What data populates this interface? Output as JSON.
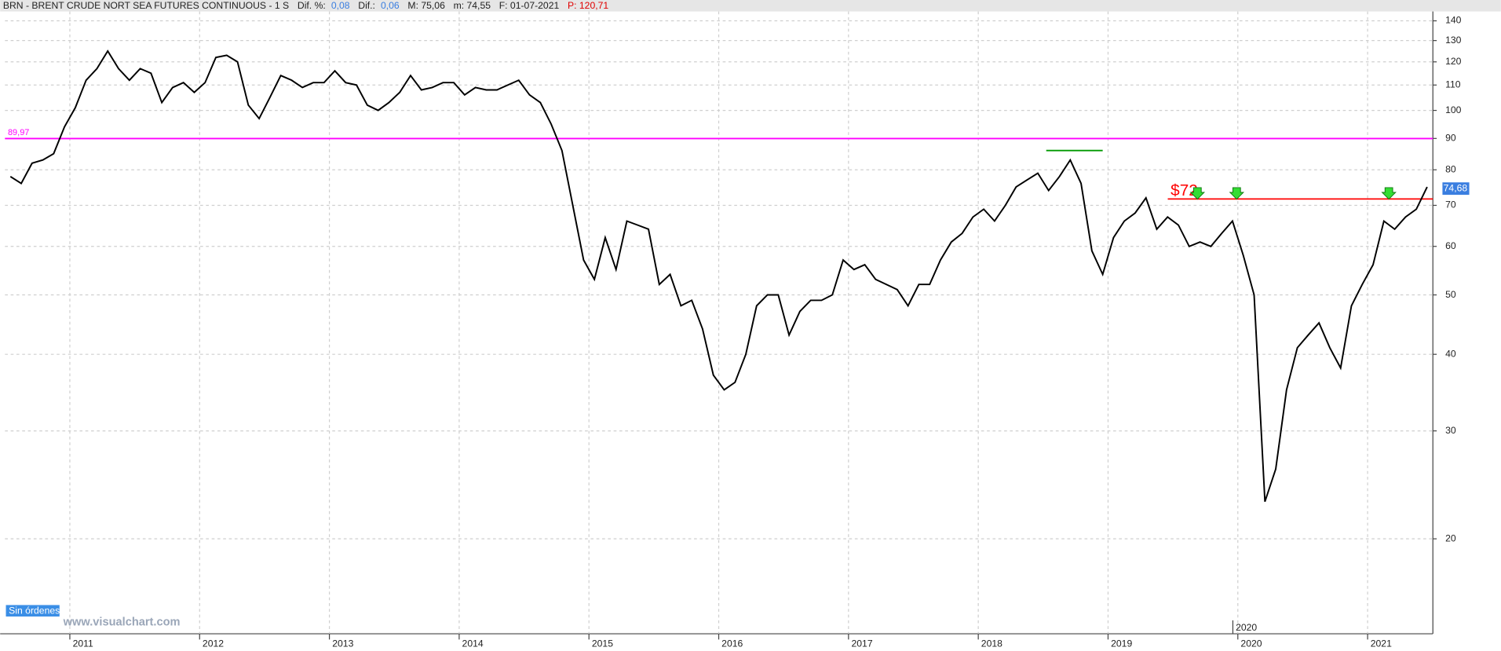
{
  "header": {
    "symbol": "BRN - BRENT CRUDE NORT SEA FUTURES CONTINUOUS -  1 S",
    "dif_pct_label": "Dif. %:",
    "dif_pct": "0,08",
    "dif_label": "Dif.:",
    "dif": "0,06",
    "max_label": "M: 75,06",
    "min_label": "m: 74,55",
    "date_label": "F: 01-07-2021",
    "p_label": "P: 120,71"
  },
  "footer": {
    "orders": "Sin órdenes",
    "site": "www.visualchart.com",
    "marker": "2020"
  },
  "chart_data": {
    "type": "line",
    "log_scale": true,
    "grid": true,
    "categories": [
      null,
      null,
      null,
      null,
      null,
      null,
      "2011",
      null,
      null,
      null,
      null,
      null,
      null,
      null,
      null,
      null,
      null,
      null,
      "2012",
      null,
      null,
      null,
      null,
      null,
      null,
      null,
      null,
      null,
      null,
      null,
      "2013",
      null,
      null,
      null,
      null,
      null,
      null,
      null,
      null,
      null,
      null,
      null,
      "2014",
      null,
      null,
      null,
      null,
      null,
      null,
      null,
      null,
      null,
      null,
      null,
      "2015",
      null,
      null,
      null,
      null,
      null,
      null,
      null,
      null,
      null,
      null,
      null,
      "2016",
      null,
      null,
      null,
      null,
      null,
      null,
      null,
      null,
      null,
      null,
      null,
      "2017",
      null,
      null,
      null,
      null,
      null,
      null,
      null,
      null,
      null,
      null,
      null,
      "2018",
      null,
      null,
      null,
      null,
      null,
      null,
      null,
      null,
      null,
      null,
      null,
      "2019",
      null,
      null,
      null,
      null,
      null,
      null,
      null,
      null,
      null,
      null,
      null,
      "2020",
      null,
      null,
      null,
      null,
      null,
      null,
      null,
      null,
      null,
      null,
      null,
      "2021",
      null,
      null,
      null,
      null,
      null
    ],
    "series": [
      {
        "name": "BRN",
        "color": "#000000",
        "values": [
          78,
          76,
          82,
          83,
          85,
          94,
          101,
          112,
          117,
          125,
          117,
          112,
          117,
          115,
          103,
          109,
          111,
          107,
          111,
          122,
          123,
          120,
          102,
          97,
          105,
          114,
          112,
          109,
          111,
          111,
          116,
          111,
          110,
          102,
          100,
          103,
          107,
          114,
          108,
          109,
          111,
          111,
          106,
          109,
          108,
          108,
          110,
          112,
          106,
          103,
          95,
          86,
          70,
          57,
          53,
          62,
          55,
          66,
          65,
          64,
          52,
          54,
          48,
          49,
          44,
          37,
          35,
          36,
          40,
          48,
          50,
          50,
          43,
          47,
          49,
          49,
          50,
          57,
          55,
          56,
          53,
          52,
          51,
          48,
          52,
          52,
          57,
          61,
          63,
          67,
          69,
          66,
          70,
          75,
          77,
          79,
          74,
          78,
          83,
          76,
          59,
          54,
          62,
          66,
          68,
          72,
          64,
          67,
          65,
          60,
          61,
          60,
          63,
          66,
          58,
          50,
          23,
          26,
          35,
          41,
          43,
          45,
          41,
          38,
          48,
          52,
          56,
          66,
          64,
          67,
          69,
          75
        ]
      }
    ],
    "ylim": [
      14,
      145
    ],
    "yticks": [
      20,
      30,
      40,
      50,
      60,
      70,
      80,
      90,
      100,
      110,
      120,
      130,
      140
    ],
    "hlines": [
      {
        "value": 89.97,
        "label": "89,97",
        "color": "#ff00ff"
      },
      {
        "value": 71.7,
        "label": "$72",
        "color": "#ff0000"
      },
      {
        "value": 86,
        "color": "#009900"
      }
    ],
    "last_price": {
      "value": 74.68,
      "label": "74,68"
    }
  }
}
